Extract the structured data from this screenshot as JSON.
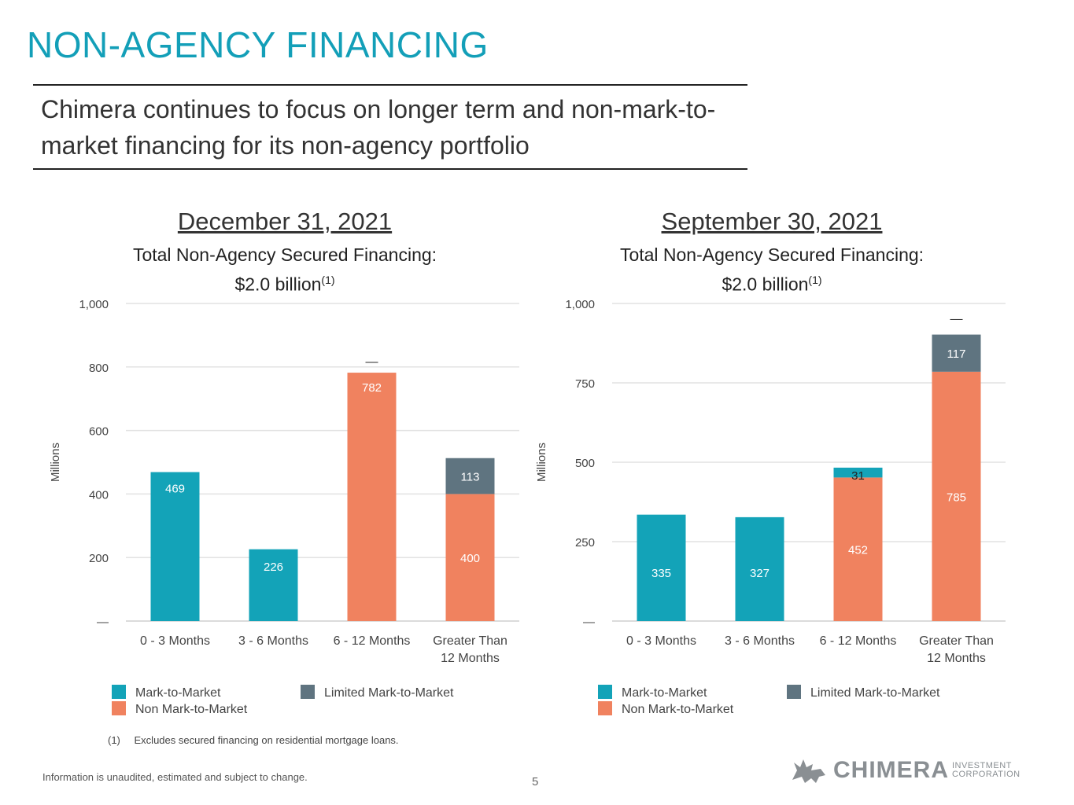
{
  "page": {
    "title": "NON-AGENCY FINANCING",
    "subtitle": "Chimera continues to focus on longer term and non-mark-to-market financing for its non-agency portfolio",
    "footnote_marker": "(1)",
    "footnote_text": "Excludes secured financing on residential mortgage loans.",
    "info_text": "Information is unaudited, estimated and subject to change.",
    "page_number": "5",
    "logo_name": "CHIMERA",
    "logo_corp_line1": "INVESTMENT",
    "logo_corp_line2": "CORPORATION"
  },
  "colors": {
    "mark_to_market": "#13a3b8",
    "non_mark_to_market": "#f0825f",
    "limited_mark_to_market": "#5f7480",
    "title": "#139fb8"
  },
  "legend": {
    "mark_to_market": "Mark-to-Market",
    "non_mark_to_market": "Non Mark-to-Market",
    "limited_mark_to_market": "Limited Mark-to-Market"
  },
  "charts": [
    {
      "date": "December 31, 2021",
      "total_label": "Total Non-Agency Secured Financing:",
      "total_value": "$2.0 billion",
      "total_sup": "(1)"
    },
    {
      "date": "September 30, 2021",
      "total_label": "Total Non-Agency Secured Financing:",
      "total_value": "$2.0 billion",
      "total_sup": "(1)"
    }
  ],
  "chart_data": [
    {
      "type": "bar",
      "stacked": true,
      "title": "December 31, 2021",
      "ylabel": "Millions",
      "ylim": [
        0,
        1000
      ],
      "yticks": [
        0,
        200,
        400,
        600,
        800,
        1000
      ],
      "ytick_labels": [
        "—",
        "200",
        "400",
        "600",
        "800",
        "1,000"
      ],
      "categories": [
        [
          "0 - 3 Months"
        ],
        [
          "3 - 6 Months"
        ],
        [
          "6 - 12 Months"
        ],
        [
          "Greater Than",
          "12 Months"
        ]
      ],
      "series": [
        {
          "name": "Mark-to-Market",
          "key": "mark_to_market",
          "values": [
            469,
            226,
            0,
            0
          ],
          "labels": [
            "469",
            "226",
            "",
            ""
          ]
        },
        {
          "name": "Non Mark-to-Market",
          "key": "non_mark_to_market",
          "values": [
            0,
            0,
            782,
            400
          ],
          "labels": [
            "",
            "",
            "782",
            "400"
          ]
        },
        {
          "name": "Limited Mark-to-Market",
          "key": "limited_mark_to_market",
          "values": [
            0,
            0,
            0,
            113
          ],
          "labels": [
            "",
            "",
            "",
            "113"
          ]
        }
      ],
      "annotations": [
        {
          "category_index": 2,
          "text": "—",
          "value": 800
        }
      ]
    },
    {
      "type": "bar",
      "stacked": true,
      "title": "September 30, 2021",
      "ylabel": "Millions",
      "ylim": [
        0,
        1000
      ],
      "yticks": [
        0,
        250,
        500,
        750,
        1000
      ],
      "ytick_labels": [
        "—",
        "250",
        "500",
        "750",
        "1,000"
      ],
      "categories": [
        [
          "0 - 3 Months"
        ],
        [
          "3 - 6 Months"
        ],
        [
          "6 - 12 Months"
        ],
        [
          "Greater Than",
          "12 Months"
        ]
      ],
      "series": [
        {
          "name": "Mark-to-Market",
          "key": "mark_to_market",
          "values": [
            335,
            327,
            31,
            0
          ],
          "labels": [
            "335",
            "327",
            "31",
            ""
          ]
        },
        {
          "name": "Non Mark-to-Market",
          "key": "non_mark_to_market",
          "values": [
            0,
            0,
            452,
            785
          ],
          "labels": [
            "",
            "",
            "452",
            "785"
          ]
        },
        {
          "name": "Limited Mark-to-Market",
          "key": "limited_mark_to_market",
          "values": [
            0,
            0,
            0,
            117
          ],
          "labels": [
            "",
            "",
            "",
            "117"
          ]
        }
      ],
      "annotations": [
        {
          "category_index": 3,
          "text": "—",
          "value": 935
        }
      ]
    }
  ]
}
